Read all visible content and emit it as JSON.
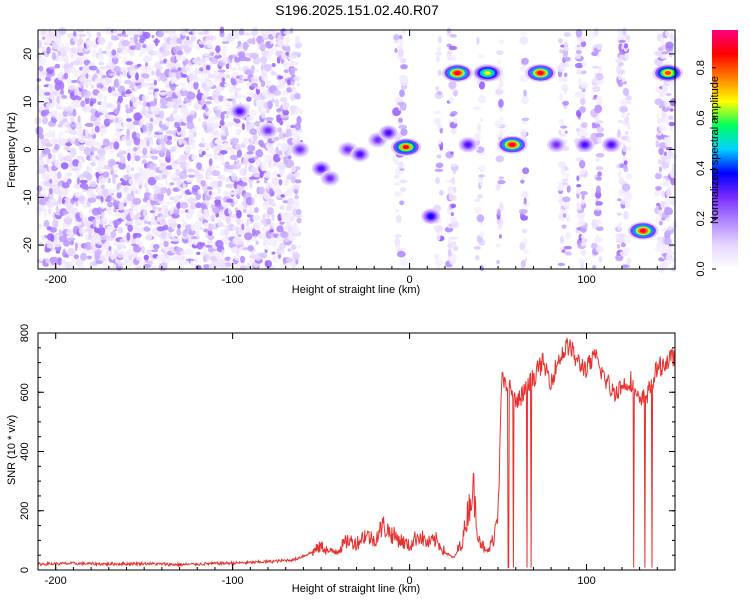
{
  "title": "S196.2025.151.02.40.R07",
  "chart_data": [
    {
      "type": "heatmap",
      "xlabel": "Height of straight line (km)",
      "ylabel": "Frequency (Hz)",
      "xlim": [
        -210,
        150
      ],
      "ylim": [
        -25,
        25
      ],
      "xticks": [
        -200,
        -100,
        0,
        100
      ],
      "yticks": [
        -20,
        -10,
        0,
        10,
        20
      ],
      "colorbar": {
        "label": "Normalized spectral amplitude",
        "range": [
          0.0,
          0.95
        ],
        "ticks": [
          "0.0",
          "0.2",
          "0.4",
          "0.6",
          "0.8"
        ]
      },
      "colormap": [
        "#ffffff",
        "#e6d6ff",
        "#b088ff",
        "#7a2cff",
        "#0000ff",
        "#00d0ff",
        "#00ff60",
        "#ffff00",
        "#ff8000",
        "#ff0000",
        "#ff0080"
      ],
      "peaks": [
        {
          "x": -96,
          "y": 8,
          "amp": 0.35
        },
        {
          "x": -80,
          "y": 4,
          "amp": 0.3
        },
        {
          "x": -62,
          "y": 0,
          "amp": 0.3
        },
        {
          "x": -50,
          "y": -4,
          "amp": 0.35
        },
        {
          "x": -45,
          "y": -6,
          "amp": 0.3
        },
        {
          "x": -35,
          "y": 0,
          "amp": 0.3
        },
        {
          "x": -28,
          "y": -1,
          "amp": 0.35
        },
        {
          "x": -18,
          "y": 2,
          "amp": 0.3
        },
        {
          "x": -12,
          "y": 3.5,
          "amp": 0.35
        },
        {
          "x": -2,
          "y": 0.5,
          "amp": 0.9
        },
        {
          "x": 12,
          "y": -14,
          "amp": 0.4
        },
        {
          "x": 27,
          "y": 16,
          "amp": 0.95
        },
        {
          "x": 33,
          "y": 1,
          "amp": 0.35
        },
        {
          "x": 44,
          "y": 16,
          "amp": 0.7
        },
        {
          "x": 58,
          "y": 1,
          "amp": 0.95
        },
        {
          "x": 74,
          "y": 16,
          "amp": 0.95
        },
        {
          "x": 83,
          "y": 1,
          "amp": 0.3
        },
        {
          "x": 99,
          "y": 1,
          "amp": 0.35
        },
        {
          "x": 114,
          "y": 1,
          "amp": 0.35
        },
        {
          "x": 132,
          "y": -17,
          "amp": 0.95
        },
        {
          "x": 146,
          "y": 16,
          "amp": 0.85
        }
      ]
    },
    {
      "type": "line",
      "xlabel": "Height of straight line (km)",
      "ylabel": "SNR (10 * v/v)",
      "xlim": [
        -210,
        150
      ],
      "ylim": [
        0,
        800
      ],
      "xticks": [
        -200,
        -100,
        0,
        100
      ],
      "yticks": [
        0,
        200,
        400,
        600,
        800
      ],
      "color": "#e8312f",
      "series": [
        {
          "x": [
            -210,
            -190,
            -170,
            -150,
            -130,
            -110,
            -90,
            -75,
            -65,
            -55,
            -50,
            -45,
            -40,
            -35,
            -30,
            -25,
            -20,
            -15,
            -10,
            -5,
            0,
            5,
            10,
            15,
            20,
            25,
            30,
            33,
            36,
            38,
            40,
            43,
            45,
            48,
            50,
            52,
            55,
            57,
            60,
            65,
            70,
            75,
            80,
            85,
            90,
            95,
            100,
            105,
            110,
            115,
            120,
            125,
            130,
            135,
            140,
            145,
            150
          ],
          "y": [
            20,
            22,
            20,
            22,
            18,
            22,
            25,
            30,
            35,
            60,
            80,
            60,
            70,
            100,
            90,
            120,
            100,
            150,
            120,
            100,
            80,
            120,
            90,
            100,
            60,
            40,
            100,
            200,
            280,
            150,
            100,
            60,
            70,
            120,
            220,
            650,
            600,
            620,
            560,
            600,
            650,
            700,
            640,
            720,
            760,
            700,
            680,
            720,
            650,
            600,
            620,
            640,
            560,
            600,
            680,
            700,
            720
          ]
        }
      ]
    }
  ]
}
